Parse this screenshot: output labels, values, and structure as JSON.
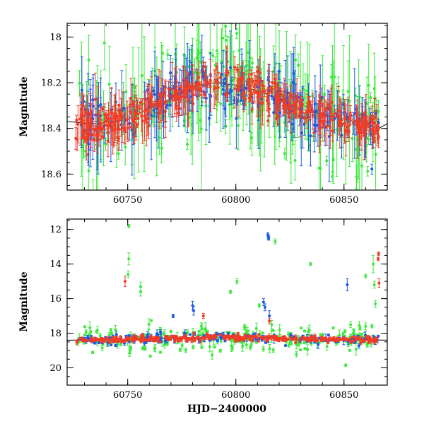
{
  "colors": {
    "green": "#3ee83e",
    "blue": "#1e58e6",
    "red": "#f23b25",
    "axis": "#000000"
  },
  "chart_data": [
    {
      "type": "scatter",
      "xlabel": "",
      "ylabel": "Magnitude",
      "xlim": [
        60722,
        60870
      ],
      "ylim": [
        18.67,
        17.94
      ],
      "y_inverted": true,
      "grid": false,
      "x_ticks": [
        60750,
        60800,
        60850
      ],
      "y_ticks": [
        18.0,
        18.2,
        18.4,
        18.6
      ],
      "x_tick_labels": [
        "60750",
        "60800",
        "60850"
      ],
      "y_tick_labels": [
        "18",
        "18.2",
        "18.4",
        "18.6"
      ],
      "trend": [
        [
          60722,
          18.37
        ],
        [
          60735,
          18.38
        ],
        [
          60750,
          18.36
        ],
        [
          60760,
          18.31
        ],
        [
          60770,
          18.27
        ],
        [
          60780,
          18.22
        ],
        [
          60790,
          18.2
        ],
        [
          60800,
          18.21
        ],
        [
          60812,
          18.24
        ],
        [
          60825,
          18.3
        ],
        [
          60840,
          18.34
        ],
        [
          60855,
          18.37
        ],
        [
          60866,
          18.4
        ],
        [
          60870,
          18.38
        ]
      ],
      "series": [
        {
          "color": "green",
          "scatter_sigma": 0.11,
          "error_range": [
            0.02,
            0.3
          ],
          "x_range": [
            60726,
            60866
          ],
          "points": 260
        },
        {
          "color": "blue",
          "scatter_sigma": 0.05,
          "error_range": [
            0.015,
            0.2
          ],
          "x_range": [
            60726,
            60866
          ],
          "points": 230
        },
        {
          "color": "red",
          "scatter_sigma": 0.035,
          "error_range": [
            0.01,
            0.12
          ],
          "x_range": [
            60726,
            60866
          ],
          "points": 420
        }
      ]
    },
    {
      "type": "scatter",
      "xlabel": "HJD−2400000",
      "ylabel": "Magnitude",
      "xlim": [
        60722,
        60870
      ],
      "ylim": [
        21.0,
        11.4
      ],
      "y_inverted": true,
      "grid": false,
      "x_ticks": [
        60750,
        60800,
        60850
      ],
      "y_ticks": [
        12,
        14,
        16,
        18,
        20
      ],
      "x_tick_labels": [
        "60750",
        "60800",
        "60850"
      ],
      "y_tick_labels": [
        "12",
        "14",
        "16",
        "18",
        "20"
      ],
      "trend": [
        [
          60722,
          18.4
        ],
        [
          60750,
          18.37
        ],
        [
          60790,
          18.22
        ],
        [
          60830,
          18.32
        ],
        [
          60870,
          18.4
        ]
      ],
      "series": [
        {
          "color": "green",
          "scatter_sigma": 0.35,
          "error_range": [
            0.05,
            0.35
          ],
          "x_range": [
            60726,
            60866
          ],
          "points": 240
        },
        {
          "color": "blue",
          "scatter_sigma": 0.15,
          "error_range": [
            0.03,
            0.25
          ],
          "x_range": [
            60726,
            60866
          ],
          "points": 180
        },
        {
          "color": "red",
          "scatter_sigma": 0.08,
          "error_range": [
            0.02,
            0.15
          ],
          "x_range": [
            60726,
            60866
          ],
          "points": 360
        }
      ],
      "outliers": [
        {
          "color": "green",
          "x": 60750.5,
          "y": 11.8,
          "err": 0.1
        },
        {
          "color": "green",
          "x": 60750.5,
          "y": 13.7,
          "err": 0.35
        },
        {
          "color": "green",
          "x": 60750.2,
          "y": 14.6,
          "err": 0.2
        },
        {
          "color": "green",
          "x": 60756.0,
          "y": 15.6,
          "err": 0.25
        },
        {
          "color": "green",
          "x": 60756.0,
          "y": 15.3,
          "err": 0.25
        },
        {
          "color": "green",
          "x": 60800.5,
          "y": 15.0,
          "err": 0.15
        },
        {
          "color": "green",
          "x": 60797.5,
          "y": 15.6,
          "err": 0.1
        },
        {
          "color": "green",
          "x": 60810.8,
          "y": 16.4,
          "err": 0.1
        },
        {
          "color": "green",
          "x": 60818.2,
          "y": 12.7,
          "err": 0.15
        },
        {
          "color": "green",
          "x": 60834.5,
          "y": 14.0,
          "err": 0.08
        },
        {
          "color": "green",
          "x": 60860.0,
          "y": 14.7,
          "err": 0.12
        },
        {
          "color": "green",
          "x": 60863.5,
          "y": 14.0,
          "err": 0.5
        },
        {
          "color": "green",
          "x": 60864.0,
          "y": 15.2,
          "err": 0.2
        },
        {
          "color": "green",
          "x": 60864.5,
          "y": 16.3,
          "err": 0.2
        },
        {
          "color": "green",
          "x": 60784.0,
          "y": 17.6,
          "err": 0.2
        },
        {
          "color": "green",
          "x": 60860.0,
          "y": 17.6,
          "err": 0.2
        },
        {
          "color": "blue",
          "x": 60814.8,
          "y": 12.3,
          "err": 0.12
        },
        {
          "color": "blue",
          "x": 60815.0,
          "y": 12.45,
          "err": 0.12
        },
        {
          "color": "blue",
          "x": 60815.2,
          "y": 12.5,
          "err": 0.12
        },
        {
          "color": "blue",
          "x": 60771.0,
          "y": 17.0,
          "err": 0.1
        },
        {
          "color": "blue",
          "x": 60780.0,
          "y": 16.4,
          "err": 0.25
        },
        {
          "color": "blue",
          "x": 60780.5,
          "y": 16.7,
          "err": 0.25
        },
        {
          "color": "blue",
          "x": 60812.8,
          "y": 16.2,
          "err": 0.2
        },
        {
          "color": "blue",
          "x": 60813.5,
          "y": 16.5,
          "err": 0.2
        },
        {
          "color": "blue",
          "x": 60851.5,
          "y": 15.2,
          "err": 0.35
        },
        {
          "color": "blue",
          "x": 60815.5,
          "y": 17.0,
          "err": 0.3
        },
        {
          "color": "red",
          "x": 60748.8,
          "y": 15.0,
          "err": 0.3
        },
        {
          "color": "red",
          "x": 60866.0,
          "y": 13.4,
          "err": 0.1
        },
        {
          "color": "red",
          "x": 60865.8,
          "y": 13.7,
          "err": 0.1
        },
        {
          "color": "red",
          "x": 60866.2,
          "y": 15.1,
          "err": 0.25
        },
        {
          "color": "red",
          "x": 60815.5,
          "y": 17.3,
          "err": 0.15
        },
        {
          "color": "red",
          "x": 60785.0,
          "y": 17.0,
          "err": 0.15
        }
      ]
    }
  ]
}
